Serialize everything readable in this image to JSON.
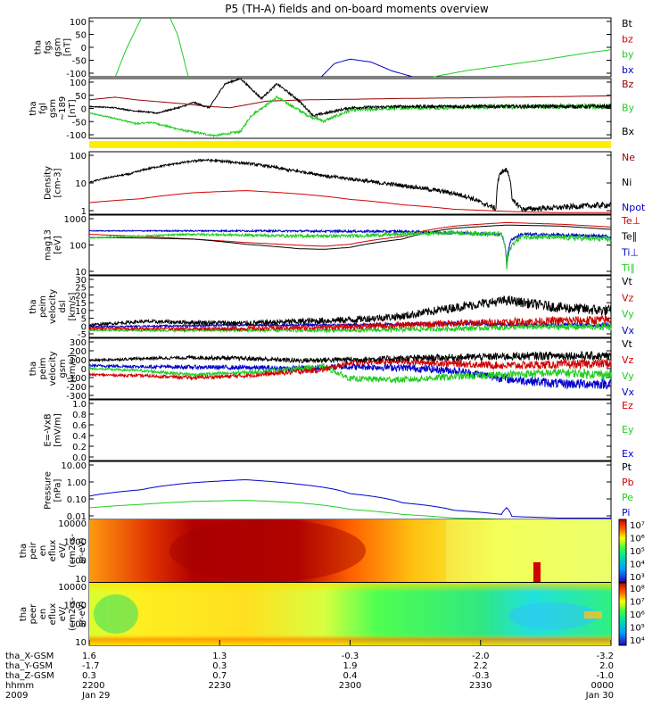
{
  "title": "P5 (TH-A) fields and on-board moments overview",
  "colors": {
    "black": "#000000",
    "red": "#d00000",
    "dred": "#990000",
    "green": "#22cc22",
    "blue": "#0000cc",
    "yellow": "#ffee00"
  },
  "chart_data": [
    {
      "id": "fgs",
      "type": "line",
      "ylabel": [
        "tha",
        "fgs",
        "gsm",
        "[nT]"
      ],
      "yticks": [
        "100",
        "50",
        "0",
        "-50",
        "-100"
      ],
      "ylim": [
        -100,
        100
      ],
      "ylog": false,
      "legend": [
        {
          "label": "Bt",
          "color": "black"
        },
        {
          "label": "bz",
          "color": "red"
        },
        {
          "label": "by",
          "color": "green"
        },
        {
          "label": "bx",
          "color": "blue"
        }
      ],
      "series": [
        {
          "name": "by",
          "color": "green",
          "x": [
            0.05,
            0.07,
            0.1
          ],
          "y": [
            -100,
            -10,
            100
          ]
        },
        {
          "name": "by",
          "color": "green",
          "x": [
            0.155,
            0.17,
            0.19
          ],
          "y": [
            100,
            40,
            -100
          ]
        },
        {
          "name": "bx",
          "color": "blue",
          "x": [
            0.445,
            0.47,
            0.5,
            0.54,
            0.58,
            0.62
          ],
          "y": [
            -100,
            -55,
            -40,
            -50,
            -80,
            -100
          ]
        },
        {
          "name": "by",
          "color": "green",
          "x": [
            0.66,
            0.72,
            0.8,
            0.88,
            0.95,
            1.0
          ],
          "y": [
            -100,
            -80,
            -60,
            -40,
            -20,
            -8
          ]
        }
      ]
    },
    {
      "id": "fgl",
      "type": "line",
      "ylabel": [
        "tha",
        "fgl",
        "gsm",
        "~189",
        "[nT]"
      ],
      "yticks": [
        "100",
        "50",
        "0",
        "-50",
        "-100"
      ],
      "ylim": [
        -125,
        100
      ],
      "ylog": false,
      "legend": [
        {
          "label": "Bz",
          "color": "dred"
        },
        {
          "label": "By",
          "color": "green"
        },
        {
          "label": "Bx",
          "color": "black"
        }
      ],
      "series": [
        {
          "name": "Bz",
          "color": "dred",
          "x": [
            0,
            0.05,
            0.09,
            0.12,
            0.18,
            0.23,
            0.27,
            0.34,
            0.42,
            0.5,
            0.6,
            0.7,
            0.8,
            0.9,
            1.0
          ],
          "y": [
            20,
            30,
            20,
            15,
            5,
            -5,
            -10,
            15,
            20,
            22,
            25,
            27,
            30,
            32,
            35
          ]
        },
        {
          "name": "By",
          "color": "green",
          "x": [
            0,
            0.05,
            0.09,
            0.12,
            0.18,
            0.24,
            0.29,
            0.31,
            0.36,
            0.42,
            0.45,
            0.5,
            0.6,
            0.7,
            0.8,
            0.9,
            1.0
          ],
          "y": [
            -30,
            -50,
            -70,
            -65,
            -95,
            -115,
            -100,
            -40,
            30,
            -40,
            -60,
            -20,
            -10,
            -8,
            -6,
            -5,
            -5
          ],
          "noise": 8
        },
        {
          "name": "Bx",
          "color": "black",
          "x": [
            0,
            0.05,
            0.08,
            0.13,
            0.18,
            0.2,
            0.23,
            0.26,
            0.29,
            0.33,
            0.36,
            0.4,
            0.43,
            0.5,
            0.6,
            0.7,
            0.8,
            0.9,
            1.0
          ],
          "y": [
            -5,
            -10,
            -20,
            -30,
            -5,
            10,
            -10,
            80,
            100,
            25,
            80,
            20,
            -40,
            -10,
            -5,
            -5,
            -5,
            -5,
            -5
          ],
          "noise": 6
        }
      ]
    },
    {
      "id": "density",
      "type": "line",
      "ylabel": [
        "Density",
        "[cm-3]"
      ],
      "yticks": [
        "100",
        "10",
        "1"
      ],
      "ylim": [
        0.3,
        200
      ],
      "ylog": true,
      "legend": [
        {
          "label": "Ne",
          "color": "dred"
        },
        {
          "label": "Ni",
          "color": "black"
        },
        {
          "label": "Npot",
          "color": "blue"
        }
      ],
      "series": [
        {
          "name": "Ni",
          "color": "black",
          "x": [
            0,
            0.08,
            0.15,
            0.22,
            0.3,
            0.38,
            0.46,
            0.55,
            0.65,
            0.72,
            0.75,
            0.78,
            0.79,
            0.8,
            0.81,
            0.83,
            0.9,
            1.0
          ],
          "y": [
            8,
            20,
            50,
            85,
            60,
            30,
            15,
            8,
            4,
            2,
            1,
            0.5,
            25,
            30,
            1.2,
            0.5,
            0.6,
            0.8
          ],
          "noise": 0.1
        },
        {
          "name": "Ne",
          "color": "red",
          "x": [
            0,
            0.1,
            0.2,
            0.3,
            0.4,
            0.5,
            0.6,
            0.7,
            0.8,
            0.9,
            1.0
          ],
          "y": [
            1,
            1.5,
            2.8,
            3.5,
            2.5,
            1.4,
            0.8,
            0.5,
            0.4,
            0.35,
            0.35
          ]
        }
      ]
    },
    {
      "id": "temp",
      "type": "line",
      "ylabel": [
        "mag13",
        "[eV]"
      ],
      "yticks": [
        "1000",
        "100",
        "10"
      ],
      "ylim": [
        10,
        1500
      ],
      "ylog": true,
      "legend": [
        {
          "label": "Te⊥",
          "color": "red"
        },
        {
          "label": "Te∥",
          "color": "black"
        },
        {
          "label": "Ti⊥",
          "color": "blue"
        },
        {
          "label": "Ti∥",
          "color": "green"
        }
      ],
      "series": [
        {
          "name": "Ti⊥",
          "color": "blue",
          "x": [
            0,
            0.3,
            0.6,
            0.79,
            0.8,
            0.81,
            0.83,
            1.0
          ],
          "y": [
            400,
            400,
            380,
            300,
            20,
            200,
            300,
            250
          ],
          "noise": 0.05
        },
        {
          "name": "Te⊥",
          "color": "red",
          "x": [
            0,
            0.1,
            0.2,
            0.3,
            0.4,
            0.45,
            0.5,
            0.6,
            0.7,
            0.8,
            0.9,
            1.0
          ],
          "y": [
            300,
            250,
            200,
            150,
            120,
            110,
            130,
            250,
            600,
            800,
            700,
            550
          ]
        },
        {
          "name": "Te∥",
          "color": "black",
          "x": [
            0,
            0.1,
            0.2,
            0.3,
            0.4,
            0.45,
            0.5,
            0.6,
            0.7,
            0.8,
            0.9,
            1.0
          ],
          "y": [
            230,
            220,
            200,
            130,
            90,
            85,
            100,
            200,
            500,
            650,
            600,
            450
          ]
        },
        {
          "name": "Ti∥",
          "color": "green",
          "x": [
            0,
            0.1,
            0.2,
            0.3,
            0.4,
            0.5,
            0.6,
            0.7,
            0.79,
            0.8,
            0.81,
            0.83,
            1.0
          ],
          "y": [
            220,
            260,
            300,
            280,
            260,
            260,
            300,
            350,
            300,
            15,
            120,
            250,
            200
          ],
          "noise": 0.08
        }
      ]
    },
    {
      "id": "vel_dsl",
      "type": "line",
      "ylabel": [
        "tha",
        "peim",
        "velocity",
        "dsl",
        "[km/s]"
      ],
      "yticks": [
        "30",
        "25",
        "20",
        "15",
        "10",
        "5",
        "0",
        "-5"
      ],
      "ylim": [
        -5,
        30
      ],
      "ylog": false,
      "legend": [
        {
          "label": "Vt",
          "color": "black"
        },
        {
          "label": "Vz",
          "color": "red"
        },
        {
          "label": "Vy",
          "color": "green"
        },
        {
          "label": "Vx",
          "color": "blue"
        }
      ],
      "series": [
        {
          "name": "Vx",
          "color": "blue",
          "x": [
            0,
            0.3,
            0.5,
            0.7,
            0.85,
            1.0
          ],
          "y": [
            1,
            2,
            2,
            3,
            2,
            2
          ],
          "noise": 1
        },
        {
          "name": "Vy",
          "color": "green",
          "x": [
            0,
            0.3,
            0.5,
            0.7,
            0.85,
            1.0
          ],
          "y": [
            -1,
            -1,
            -1,
            0,
            1,
            1
          ],
          "noise": 1.5
        },
        {
          "name": "Vz",
          "color": "red",
          "x": [
            0,
            0.3,
            0.5,
            0.7,
            0.85,
            1.0
          ],
          "y": [
            0,
            0,
            1,
            3,
            4,
            5
          ],
          "noise": 2
        },
        {
          "name": "Vt",
          "color": "black",
          "x": [
            0,
            0.1,
            0.3,
            0.5,
            0.6,
            0.7,
            0.8,
            0.9,
            1.0
          ],
          "y": [
            2,
            4,
            3,
            5,
            7,
            12,
            16,
            12,
            10
          ],
          "noise": 2.5
        }
      ]
    },
    {
      "id": "vel_gsm",
      "type": "line",
      "ylabel": [
        "tha",
        "peim",
        "velocity",
        "gsm",
        "[km/s]"
      ],
      "yticks": [
        "300",
        "200",
        "100",
        "0",
        "-100",
        "-200",
        "-300"
      ],
      "ylim": [
        -300,
        300
      ],
      "ylog": false,
      "legend": [
        {
          "label": "Vt",
          "color": "black"
        },
        {
          "label": "Vz",
          "color": "red"
        },
        {
          "label": "Vy",
          "color": "green"
        },
        {
          "label": "Vx",
          "color": "blue"
        }
      ],
      "series": [
        {
          "name": "Vx",
          "color": "blue",
          "x": [
            0,
            0.1,
            0.3,
            0.4,
            0.5,
            0.6,
            0.7,
            0.8,
            0.9,
            1.0
          ],
          "y": [
            30,
            20,
            10,
            0,
            20,
            10,
            -20,
            -100,
            -150,
            -150
          ],
          "noise": 40
        },
        {
          "name": "Vy",
          "color": "green",
          "x": [
            0,
            0.1,
            0.2,
            0.3,
            0.4,
            0.45,
            0.5,
            0.6,
            0.7,
            0.8,
            0.9,
            1.0
          ],
          "y": [
            0,
            -20,
            -60,
            -40,
            0,
            20,
            -100,
            -110,
            -80,
            -60,
            -40,
            -60
          ],
          "noise": 35
        },
        {
          "name": "Vz",
          "color": "red",
          "x": [
            0,
            0.1,
            0.2,
            0.3,
            0.4,
            0.45,
            0.5,
            0.6,
            0.7,
            0.8,
            0.9,
            1.0
          ],
          "y": [
            -60,
            -70,
            -90,
            -70,
            -30,
            -10,
            60,
            70,
            50,
            30,
            40,
            50
          ],
          "noise": 35
        },
        {
          "name": "Vt",
          "color": "black",
          "x": [
            0,
            0.1,
            0.2,
            0.3,
            0.4,
            0.5,
            0.6,
            0.7,
            0.8,
            0.9,
            1.0
          ],
          "y": [
            80,
            100,
            110,
            100,
            80,
            90,
            100,
            110,
            120,
            130,
            120
          ],
          "noise": 35
        }
      ]
    },
    {
      "id": "efield",
      "type": "line",
      "ylabel": [
        "E=-VxB",
        "[mV/m]"
      ],
      "yticks": [
        "1.0",
        "0.8",
        "0.6",
        "0.4",
        "0.2",
        "0.0"
      ],
      "ylim": [
        0,
        1
      ],
      "ylog": false,
      "legend": [
        {
          "label": "Ez",
          "color": "red"
        },
        {
          "label": "Ey",
          "color": "green"
        },
        {
          "label": "Ex",
          "color": "blue"
        }
      ],
      "series": []
    },
    {
      "id": "pressure",
      "type": "line",
      "ylabel": [
        "Pressure",
        "[nPa]"
      ],
      "yticks": [
        "10.00",
        "1.00",
        "0.10",
        "0.01"
      ],
      "ylim": [
        0.01,
        30
      ],
      "ylog": true,
      "legend": [
        {
          "label": "Pt",
          "color": "black"
        },
        {
          "label": "Pb",
          "color": "red"
        },
        {
          "label": "Pe",
          "color": "green"
        },
        {
          "label": "Pi",
          "color": "blue"
        }
      ],
      "series": [
        {
          "name": "Pi",
          "color": "blue",
          "x": [
            0,
            0.1,
            0.2,
            0.3,
            0.4,
            0.5,
            0.6,
            0.7,
            0.79,
            0.8,
            0.81,
            0.9,
            1.0
          ],
          "y": [
            0.25,
            0.6,
            1.6,
            2.4,
            1.3,
            0.35,
            0.1,
            0.035,
            0.02,
            0.05,
            0.015,
            0.012,
            0.012
          ]
        },
        {
          "name": "Pe",
          "color": "green",
          "x": [
            0,
            0.1,
            0.2,
            0.3,
            0.4,
            0.5,
            0.6,
            0.7,
            0.8,
            0.9,
            1.0
          ],
          "y": [
            0.05,
            0.08,
            0.12,
            0.14,
            0.1,
            0.04,
            0.02,
            0.012,
            0.01,
            0.01,
            0.01
          ]
        }
      ]
    },
    {
      "id": "spec_ion",
      "type": "heatmap",
      "ylabel": [
        "tha",
        "peir",
        "en",
        "eflux",
        "eV/",
        "(cm2-s-",
        "sr-eV)"
      ],
      "yticks": [
        "10000",
        "1000",
        "100",
        "10"
      ],
      "cbar_ticks": [
        "10⁷",
        "10⁶",
        "10⁵",
        "10⁴",
        "10³"
      ]
    },
    {
      "id": "spec_ele",
      "type": "heatmap",
      "ylabel": [
        "tha",
        "peer",
        "en",
        "eflux",
        "eV/",
        "(cm2-s-",
        "sr-eV)"
      ],
      "yticks": [
        "10000",
        "1000",
        "100",
        "10"
      ],
      "cbar_ticks": [
        "10⁸",
        "10⁷",
        "10⁶",
        "10⁵",
        "10⁴"
      ]
    }
  ],
  "xaxis": {
    "row_labels": [
      "tha_X-GSM",
      "tha_Y-GSM",
      "tha_Z-GSM",
      "hhmm",
      "2009"
    ],
    "ticks": [
      {
        "frac": 0.0,
        "vals": [
          "1.6",
          "-1.7",
          "0.3",
          "2200",
          "Jan 29"
        ]
      },
      {
        "frac": 0.25,
        "vals": [
          "1.3",
          "0.3",
          "0.7",
          "2230",
          ""
        ]
      },
      {
        "frac": 0.5,
        "vals": [
          "-0.3",
          "1.9",
          "0.4",
          "2300",
          ""
        ]
      },
      {
        "frac": 0.75,
        "vals": [
          "-2.0",
          "2.2",
          "-0.3",
          "2330",
          ""
        ]
      },
      {
        "frac": 1.0,
        "vals": [
          "-3.2",
          "2.0",
          "-1.0",
          "0000",
          "Jan 30"
        ]
      }
    ]
  }
}
